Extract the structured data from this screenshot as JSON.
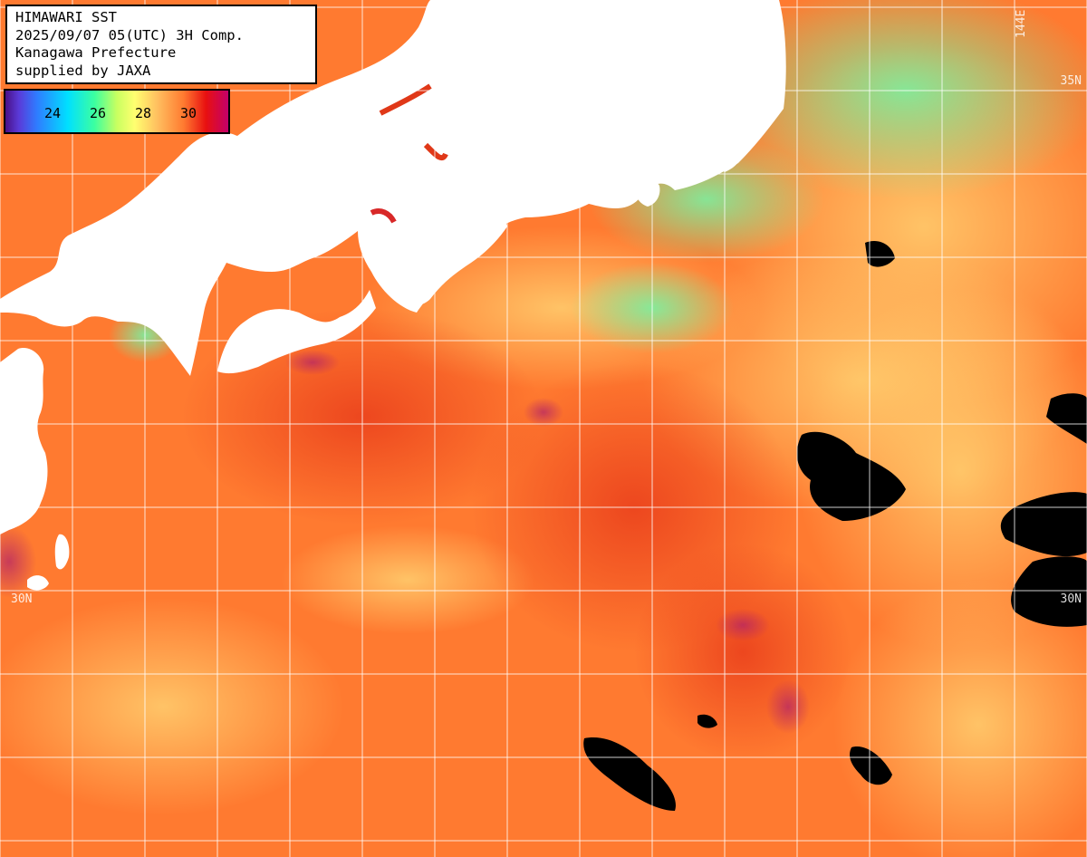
{
  "info": {
    "line1": "HIMAWARI SST",
    "line2": "2025/09/07 05(UTC) 3H Comp.",
    "line3": "Kanagawa Prefecture",
    "line4": "supplied by JAXA"
  },
  "legend": {
    "ticks": [
      "24",
      "26",
      "28",
      "30"
    ],
    "colors": [
      "#4a1088",
      "#2f7bff",
      "#00e0ff",
      "#3cffa0",
      "#ffff70",
      "#ff7a30",
      "#e81010",
      "#c4006a"
    ]
  },
  "grid_labels": {
    "lon_144e": "144E",
    "lat_35n": "35N",
    "lat_30n_left": "30N",
    "lat_30n_right": "30N"
  },
  "colors": {
    "land": "#ffffff",
    "no_data": "#000000",
    "warm_sea": "#ff7a30",
    "cool_sea": "#8cf08c",
    "grid": "#ffffff"
  }
}
